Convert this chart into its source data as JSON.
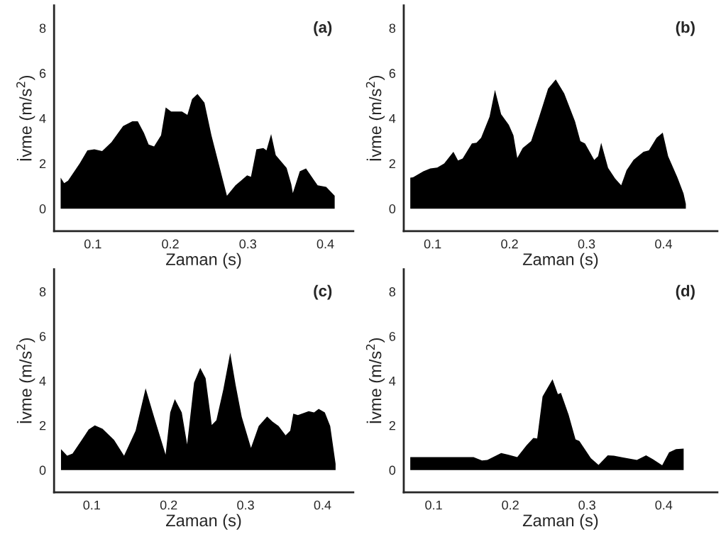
{
  "chart_data": [
    {
      "type": "area",
      "xlabel": "Zaman (s)",
      "ylabel": "İvme (m/s$^{2}$)",
      "annotations": [
        "(a)"
      ],
      "xlim": [
        0.05,
        0.436
      ],
      "xticks": [
        0.1,
        0.2,
        0.3,
        0.4
      ],
      "ylim": [
        -1,
        9
      ],
      "yticks": [
        0,
        2,
        4,
        6,
        8
      ],
      "series": [
        {
          "color": "#000000",
          "x": [
            0.0585,
            0.063,
            0.068,
            0.083,
            0.093,
            0.102,
            0.112,
            0.124,
            0.139,
            0.151,
            0.158,
            0.166,
            0.172,
            0.179,
            0.188,
            0.194,
            0.201,
            0.215,
            0.222,
            0.228,
            0.235,
            0.244,
            0.253,
            0.273,
            0.284,
            0.299,
            0.304,
            0.311,
            0.32,
            0.324,
            0.33,
            0.336,
            0.35,
            0.356,
            0.358,
            0.367,
            0.375,
            0.39,
            0.401,
            0.412
          ],
          "values": [
            1.37,
            1.13,
            1.24,
            2.0,
            2.58,
            2.63,
            2.55,
            2.94,
            3.66,
            3.87,
            3.87,
            3.35,
            2.84,
            2.75,
            3.25,
            4.48,
            4.3,
            4.3,
            4.15,
            4.85,
            5.08,
            4.69,
            3.25,
            0.57,
            1.03,
            1.47,
            1.41,
            2.63,
            2.68,
            2.58,
            3.3,
            2.37,
            1.8,
            1.08,
            0.69,
            1.65,
            1.78,
            1.03,
            0.96,
            0.57
          ]
        }
      ]
    },
    {
      "type": "area",
      "xlabel": "Zaman (s)",
      "ylabel": "İvme (m/s$^{2}$)",
      "annotations": [
        "(b)"
      ],
      "xlim": [
        0.0625,
        0.47
      ],
      "xticks": [
        0.1,
        0.2,
        0.3,
        0.4
      ],
      "ylim": [
        -1,
        9
      ],
      "yticks": [
        0,
        2,
        4,
        6,
        8
      ],
      "series": [
        {
          "color": "#000000",
          "x": [
            0.071,
            0.0745,
            0.088,
            0.097,
            0.106,
            0.115,
            0.127,
            0.133,
            0.139,
            0.151,
            0.157,
            0.163,
            0.174,
            0.181,
            0.189,
            0.199,
            0.205,
            0.21,
            0.217,
            0.228,
            0.238,
            0.25,
            0.26,
            0.271,
            0.285,
            0.292,
            0.298,
            0.31,
            0.315,
            0.319,
            0.328,
            0.337,
            0.345,
            0.352,
            0.361,
            0.374,
            0.381,
            0.391,
            0.399,
            0.406,
            0.418,
            0.426,
            0.429
          ],
          "values": [
            1.37,
            1.39,
            1.65,
            1.78,
            1.82,
            2.0,
            2.52,
            2.13,
            2.22,
            2.89,
            2.92,
            3.14,
            4.07,
            5.26,
            4.18,
            3.71,
            3.25,
            2.24,
            2.68,
            2.99,
            4.02,
            5.31,
            5.72,
            5.1,
            3.87,
            2.99,
            2.89,
            2.16,
            2.32,
            2.92,
            1.8,
            1.34,
            1.03,
            1.7,
            2.16,
            2.52,
            2.58,
            3.14,
            3.37,
            2.32,
            1.39,
            0.67,
            0.21
          ]
        }
      ]
    },
    {
      "type": "area",
      "xlabel": "Zaman (s)",
      "ylabel": "İvme (m/s$^{2}$)",
      "annotations": [
        "(c)"
      ],
      "xlim": [
        0.051,
        0.44
      ],
      "xticks": [
        0.1,
        0.2,
        0.3,
        0.4
      ],
      "ylim": [
        -1,
        9
      ],
      "yticks": [
        0,
        2,
        4,
        6,
        8
      ],
      "series": [
        {
          "color": "#000000",
          "x": [
            0.06,
            0.068,
            0.075,
            0.087,
            0.096,
            0.104,
            0.114,
            0.129,
            0.142,
            0.157,
            0.17,
            0.181,
            0.196,
            0.202,
            0.208,
            0.217,
            0.224,
            0.233,
            0.241,
            0.248,
            0.256,
            0.262,
            0.271,
            0.28,
            0.287,
            0.295,
            0.307,
            0.317,
            0.328,
            0.335,
            0.343,
            0.352,
            0.358,
            0.362,
            0.368,
            0.382,
            0.389,
            0.395,
            0.403,
            0.41,
            0.417
          ],
          "values": [
            0.94,
            0.64,
            0.74,
            1.35,
            1.82,
            2.0,
            1.85,
            1.35,
            0.64,
            1.76,
            3.66,
            2.38,
            0.69,
            2.58,
            3.18,
            2.58,
            1.15,
            3.92,
            4.58,
            4.12,
            2.02,
            2.23,
            3.61,
            5.25,
            3.82,
            2.38,
            0.99,
            1.97,
            2.4,
            2.17,
            1.97,
            1.56,
            1.76,
            2.53,
            2.46,
            2.64,
            2.58,
            2.74,
            2.58,
            1.97,
            0.28
          ]
        }
      ]
    },
    {
      "type": "area",
      "xlabel": "Zaman (s)",
      "ylabel": "İvme (m/s$^{2}$)",
      "annotations": [
        "(d)"
      ],
      "xlim": [
        0.061,
        0.47
      ],
      "xticks": [
        0.1,
        0.2,
        0.3,
        0.4
      ],
      "ylim": [
        -1,
        9
      ],
      "yticks": [
        0,
        2,
        4,
        6,
        8
      ],
      "series": [
        {
          "color": "#000000",
          "x": [
            0.0695,
            0.152,
            0.163,
            0.17,
            0.188,
            0.197,
            0.209,
            0.221,
            0.23,
            0.235,
            0.242,
            0.255,
            0.262,
            0.266,
            0.276,
            0.285,
            0.29,
            0.305,
            0.315,
            0.327,
            0.335,
            0.347,
            0.365,
            0.377,
            0.386,
            0.398,
            0.407,
            0.416,
            0.426
          ],
          "values": [
            0.58,
            0.58,
            0.43,
            0.45,
            0.76,
            0.69,
            0.58,
            1.1,
            1.44,
            1.41,
            3.3,
            4.07,
            3.4,
            3.46,
            2.48,
            1.37,
            1.3,
            0.53,
            0.23,
            0.66,
            0.64,
            0.56,
            0.45,
            0.66,
            0.48,
            0.21,
            0.79,
            0.94,
            0.96
          ]
        }
      ]
    }
  ]
}
